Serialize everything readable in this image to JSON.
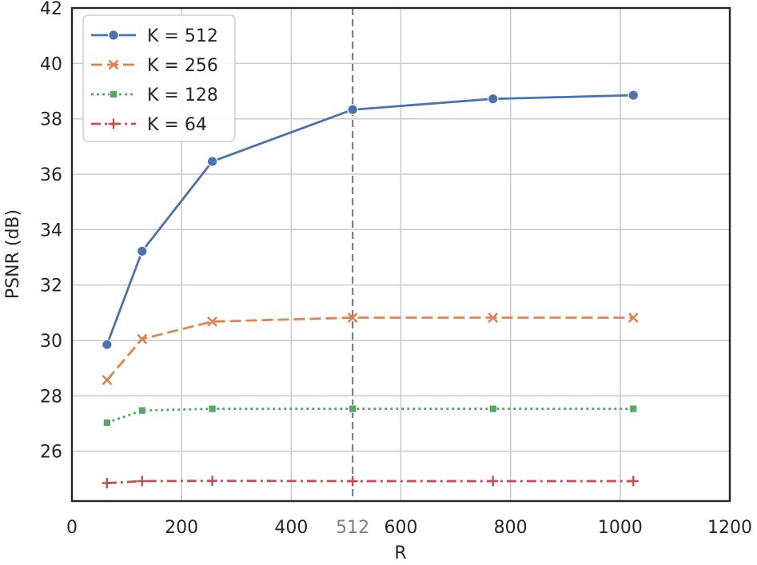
{
  "chart_data": {
    "type": "line",
    "xlabel": "R",
    "ylabel": "PSNR (dB)",
    "xlim": [
      0,
      1200
    ],
    "ylim": [
      24.2,
      42
    ],
    "xticks": [
      0,
      200,
      400,
      600,
      800,
      1000,
      1200
    ],
    "yticks": [
      26,
      28,
      30,
      32,
      34,
      36,
      38,
      40,
      42
    ],
    "grid": true,
    "legend_position": "top-left",
    "vline": {
      "x": 512,
      "label": "512",
      "color": "#7f7f7f"
    },
    "x": [
      64,
      128,
      256,
      512,
      768,
      1024
    ],
    "series": [
      {
        "name": "K = 512",
        "values": [
          29.85,
          33.22,
          36.46,
          38.33,
          38.72,
          38.85
        ],
        "color": "#4c72b0",
        "marker": "circle",
        "dash": "solid"
      },
      {
        "name": "K = 256",
        "values": [
          28.57,
          30.05,
          30.68,
          30.82,
          30.82,
          30.82
        ],
        "color": "#dd8452",
        "marker": "x",
        "dash": "dashed"
      },
      {
        "name": "K = 128",
        "values": [
          27.03,
          27.47,
          27.53,
          27.53,
          27.53,
          27.53
        ],
        "color": "#55a868",
        "marker": "square",
        "dash": "dotted"
      },
      {
        "name": "K = 64",
        "values": [
          24.85,
          24.92,
          24.93,
          24.92,
          24.92,
          24.92
        ],
        "color": "#c44e52",
        "marker": "plus",
        "dash": "dashdot"
      }
    ]
  }
}
